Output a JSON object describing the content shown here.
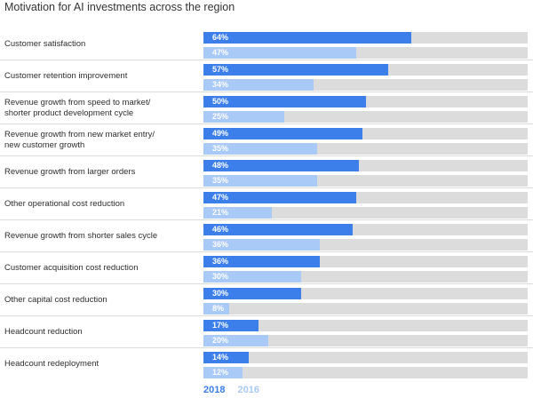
{
  "title": "Motivation for AI investments across the region",
  "chart_data": {
    "type": "bar",
    "orientation": "horizontal",
    "title": "Motivation for AI investments across the region",
    "xlim": [
      0,
      100
    ],
    "categories": [
      "Customer satisfaction",
      "Customer retention improvement",
      "Revenue growth from speed to market/\nshorter product development cycle",
      "Revenue growth from new market entry/\nnew customer growth",
      "Revenue growth from larger orders",
      "Other operational cost reduction",
      "Revenue growth from shorter sales cycle",
      "Customer acquisition cost reduction",
      "Other capital cost reduction",
      "Headcount reduction",
      "Headcount redeployment"
    ],
    "series": [
      {
        "name": "2018",
        "color": "#3d7fea",
        "values": [
          64,
          57,
          50,
          49,
          48,
          47,
          46,
          36,
          30,
          17,
          14
        ],
        "labels": [
          "64%",
          "57%",
          "50%",
          "49%",
          "48%",
          "47%",
          "46%",
          "36%",
          "30%",
          "17%",
          "14%"
        ]
      },
      {
        "name": "2016",
        "color": "#a9c9f7",
        "values": [
          47,
          34,
          25,
          35,
          35,
          21,
          36,
          30,
          8,
          20,
          12
        ],
        "labels": [
          "47%",
          "34%",
          "25%",
          "35%",
          "35%",
          "21%",
          "36%",
          "30%",
          "8%",
          "20%",
          "12%"
        ]
      }
    ],
    "legend": [
      "2018",
      "2016"
    ],
    "legend_position": "bottom-left",
    "track_color": "#dcdcdc",
    "grid": false
  }
}
